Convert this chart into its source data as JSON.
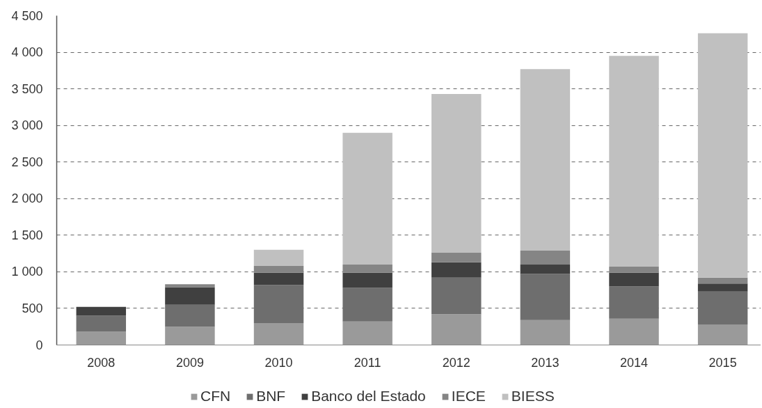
{
  "chart_data": {
    "type": "bar",
    "stacked": true,
    "categories": [
      "2008",
      "2009",
      "2010",
      "2011",
      "2012",
      "2013",
      "2014",
      "2015"
    ],
    "series": [
      {
        "name": "CFN",
        "color": "#9a9a9a",
        "values": [
          180,
          250,
          300,
          320,
          420,
          340,
          360,
          280
        ]
      },
      {
        "name": "BNF",
        "color": "#6e6e6e",
        "values": [
          220,
          300,
          520,
          460,
          500,
          630,
          440,
          450
        ]
      },
      {
        "name": "Banco del Estado",
        "color": "#404040",
        "values": [
          120,
          240,
          170,
          210,
          210,
          130,
          190,
          110
        ]
      },
      {
        "name": "IECE",
        "color": "#858585",
        "values": [
          null,
          40,
          90,
          110,
          130,
          190,
          80,
          80
        ]
      },
      {
        "name": "BIESS",
        "color": "#c0c0c0",
        "values": [
          null,
          null,
          220,
          1800,
          2170,
          2480,
          2880,
          3340
        ]
      }
    ],
    "ylim": [
      0,
      4500
    ],
    "yticks": [
      0,
      500,
      {
        "value": 1000,
        "label": "1 000"
      },
      {
        "value": 1500,
        "label": "1 500"
      },
      {
        "value": 2000,
        "label": "2 000"
      },
      {
        "value": 2500,
        "label": "2 500"
      },
      {
        "value": 3000,
        "label": "3 000"
      },
      {
        "value": 3500,
        "label": "3 500"
      },
      {
        "value": 4000,
        "label": "4 000"
      },
      {
        "value": 4500,
        "label": "4 500"
      }
    ],
    "grid": "y",
    "legend": "bottom"
  }
}
